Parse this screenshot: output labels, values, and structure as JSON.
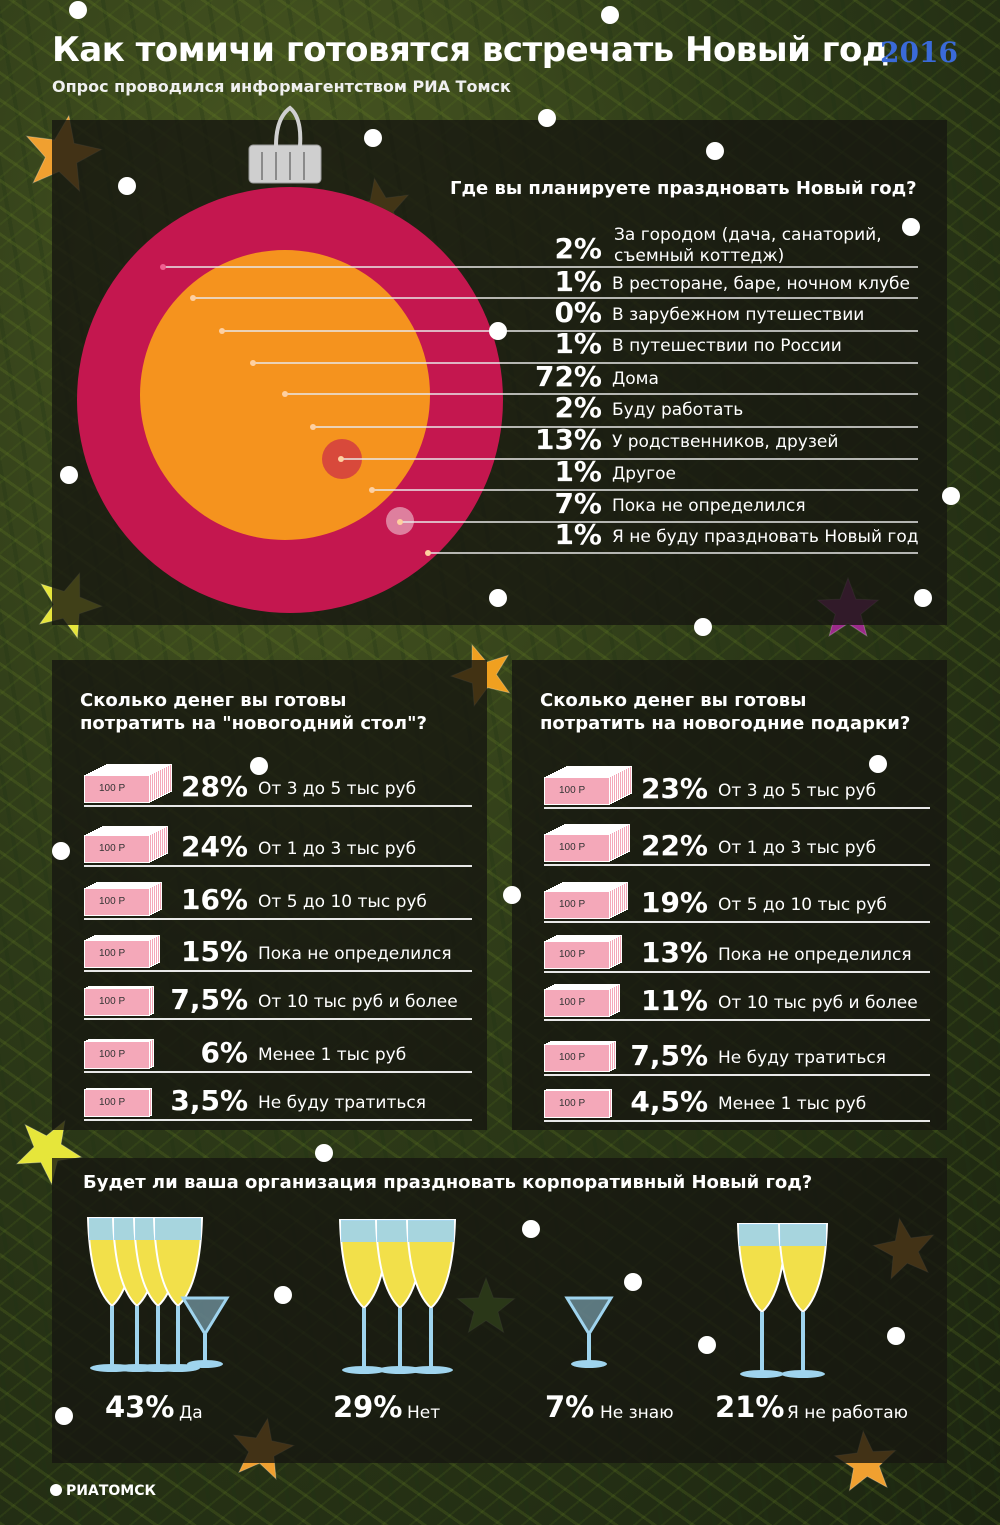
{
  "header": {
    "title": "Как томичи готовятся встречать Новый год",
    "subtitle": "Опрос проводился информагентством РИА Томск",
    "year_badge": "2016"
  },
  "logo": "РИАТОМСК",
  "colors": {
    "ornament_outer": "#c4174f",
    "ornament_inner": "#f5931e",
    "bill_pink": "#f4a8b9",
    "champagne": "#f2e04a",
    "glass_blue": "#9fd4ee"
  },
  "chart_data": [
    {
      "type": "bar",
      "title": "Где вы планируете праздновать  Новый год?",
      "categories": [
        "За городом (дача, санаторий, съемный коттедж)",
        "В ресторане, баре, ночном клубе",
        "В зарубежном путешествии",
        "В путешествии по России",
        "Дома",
        "Буду работать",
        "У родственников, друзей",
        "Другое",
        "Пока не определился",
        "Я не буду праздновать Новый год"
      ],
      "values": [
        2,
        1,
        0,
        1,
        72,
        2,
        13,
        1,
        7,
        1
      ],
      "labels": [
        "2%",
        "1%",
        "0%",
        "1%",
        "72%",
        "2%",
        "13%",
        "1%",
        "7%",
        "1%"
      ],
      "label_lines": [
        [
          "За городом (дача, санаторий,",
          "съемный коттедж)"
        ],
        [
          "В ресторане, баре, ночном клубе"
        ],
        [
          "В зарубежном путешествии"
        ],
        [
          "В путешествии по России"
        ],
        [
          "Дома"
        ],
        [
          "Буду работать"
        ],
        [
          "У родственников, друзей"
        ],
        [
          "Другое"
        ],
        [
          "Пока не определился"
        ],
        [
          "Я не буду праздновать Новый год"
        ]
      ]
    },
    {
      "type": "bar",
      "title": "Сколько денег вы готовы потратить на \"новогодний стол\"?",
      "title_lines": [
        "Сколько денег вы готовы",
        "потратить на \"новогодний стол\"?"
      ],
      "bill_label": "100 Р",
      "categories": [
        "От 3 до 5 тыс руб",
        "От 1 до 3 тыс руб",
        "От 5 до 10 тыс руб",
        "Пока не определился",
        "От 10 тыс руб и более",
        "Менее 1 тыс руб",
        "Не буду тратиться"
      ],
      "values": [
        28,
        24,
        16,
        15,
        7.5,
        6,
        3.5
      ],
      "labels": [
        "28%",
        "24%",
        "16%",
        "15%",
        "7,5%",
        "6%",
        "3,5%"
      ]
    },
    {
      "type": "bar",
      "title": "Сколько денег вы готовы потратить на новогодние подарки?",
      "title_lines": [
        "Сколько денег вы готовы",
        "потратить на новогодние подарки?"
      ],
      "bill_label": "100 Р",
      "categories": [
        "От 3 до 5 тыс руб",
        "От 1 до 3 тыс руб",
        "От 5 до 10 тыс руб",
        "Пока не определился",
        "От 10 тыс руб и более",
        "Не буду тратиться",
        "Менее 1 тыс руб"
      ],
      "values": [
        23,
        22,
        19,
        13,
        11,
        7.5,
        4.5
      ],
      "labels": [
        "23%",
        "22%",
        "19%",
        "13%",
        "11%",
        "7,5%",
        "4,5%"
      ]
    },
    {
      "type": "bar",
      "title": "Будет ли ваша организация праздновать корпоративный Новый год?",
      "categories": [
        "Да",
        "Нет",
        "Не знаю",
        "Я не работаю"
      ],
      "values": [
        43,
        29,
        7,
        21
      ],
      "labels": [
        "43%",
        "29%",
        "7%",
        "21%"
      ]
    }
  ]
}
